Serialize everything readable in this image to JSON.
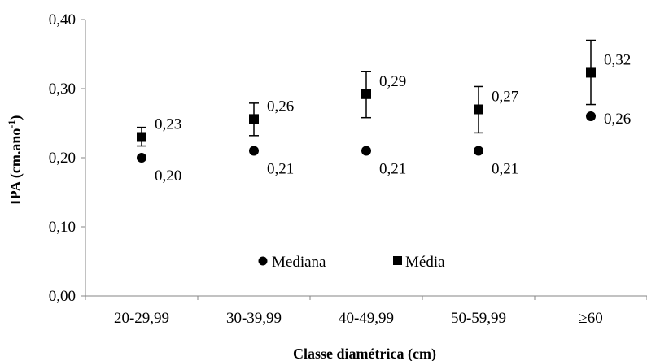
{
  "chart_data": {
    "type": "scatter",
    "title": "",
    "xlabel": "Classe diamétrica (cm)",
    "ylabel_main": "IPA (cm.ano",
    "ylabel_sup": "-1",
    "ylabel_close": ")",
    "ylim": [
      0,
      0.4
    ],
    "yticks": [
      "0,00",
      "0,10",
      "0,20",
      "0,30",
      "0,40"
    ],
    "grid": false,
    "legend_position": "bottom-center",
    "categories": [
      "20-29,99",
      "30-39,99",
      "40-49,99",
      "50-59,99",
      "≥60"
    ],
    "series": [
      {
        "name": "Mediana",
        "marker": "circle",
        "values": [
          0.2,
          0.21,
          0.21,
          0.21,
          0.26
        ],
        "labels": [
          "0,20",
          "0,21",
          "0,21",
          "0,21",
          "0,26"
        ]
      },
      {
        "name": "Média",
        "marker": "square",
        "values": [
          0.23,
          0.256,
          0.292,
          0.27,
          0.323
        ],
        "labels": [
          "0,23",
          "0,26",
          "0,29",
          "0,27",
          "0,32"
        ],
        "error_low": [
          0.217,
          0.232,
          0.258,
          0.236,
          0.277
        ],
        "error_high": [
          0.244,
          0.279,
          0.325,
          0.303,
          0.37
        ]
      }
    ]
  }
}
